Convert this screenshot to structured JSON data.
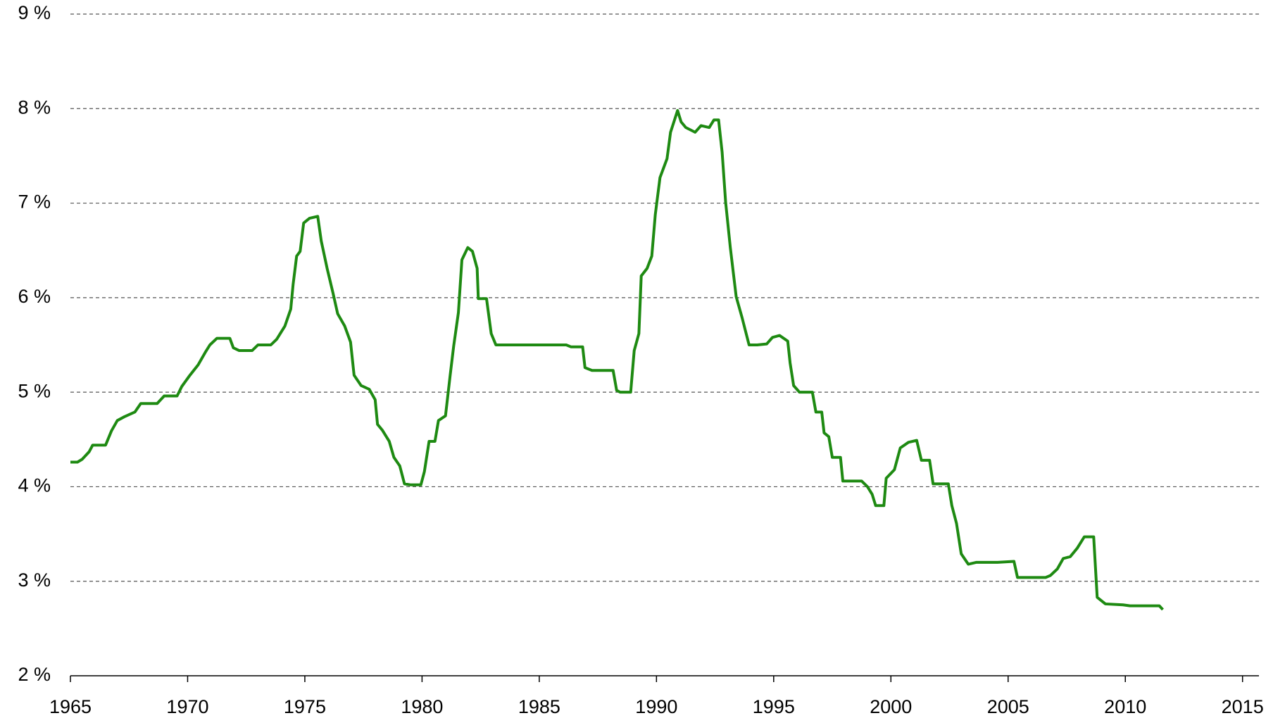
{
  "chart_data": {
    "type": "line",
    "x": [
      1965.0,
      1965.3,
      1965.5,
      1965.8,
      1965.95,
      1966.5,
      1966.75,
      1967.0,
      1967.3,
      1967.75,
      1968.0,
      1968.7,
      1969.0,
      1969.55,
      1969.75,
      1970.1,
      1970.45,
      1970.75,
      1970.95,
      1971.25,
      1971.8,
      1971.95,
      1972.2,
      1972.75,
      1973.0,
      1973.55,
      1973.8,
      1974.15,
      1974.4,
      1974.5,
      1974.65,
      1974.8,
      1974.95,
      1975.2,
      1975.55,
      1975.7,
      1975.95,
      1976.2,
      1976.4,
      1976.7,
      1976.95,
      1977.1,
      1977.4,
      1977.75,
      1978.0,
      1978.1,
      1978.3,
      1978.6,
      1978.8,
      1979.05,
      1979.25,
      1979.5,
      1979.95,
      1980.1,
      1980.3,
      1980.55,
      1980.7,
      1981.0,
      1981.2,
      1981.35,
      1981.55,
      1981.7,
      1981.95,
      1982.15,
      1982.35,
      1982.4,
      1982.75,
      1982.95,
      1983.15,
      1986.15,
      1986.35,
      1986.85,
      1986.95,
      1987.25,
      1988.15,
      1988.3,
      1988.45,
      1988.9,
      1989.05,
      1989.25,
      1989.35,
      1989.6,
      1989.8,
      1989.95,
      1990.15,
      1990.45,
      1990.6,
      1990.9,
      1991.05,
      1991.25,
      1991.65,
      1991.9,
      1992.25,
      1992.45,
      1992.65,
      1992.8,
      1992.95,
      1993.15,
      1993.4,
      1993.65,
      1993.95,
      1994.3,
      1994.7,
      1994.95,
      1995.25,
      1995.6,
      1995.7,
      1995.85,
      1996.1,
      1996.65,
      1996.8,
      1997.05,
      1997.15,
      1997.35,
      1997.5,
      1997.85,
      1997.95,
      1998.75,
      1999.0,
      1999.2,
      1999.35,
      1999.7,
      1999.8,
      2000.15,
      2000.4,
      2000.75,
      2001.1,
      2001.3,
      2001.65,
      2001.8,
      2002.45,
      2002.6,
      2002.8,
      2003.0,
      2003.3,
      2003.65,
      2004.55,
      2005.25,
      2005.4,
      2006.6,
      2006.8,
      2007.1,
      2007.35,
      2007.65,
      2007.95,
      2008.25,
      2008.65,
      2008.8,
      2009.15,
      2009.9,
      2010.2,
      2011.45,
      2011.6
    ],
    "values": [
      4.26,
      4.26,
      4.29,
      4.37,
      4.44,
      4.44,
      4.59,
      4.7,
      4.74,
      4.79,
      4.88,
      4.88,
      4.96,
      4.96,
      5.06,
      5.18,
      5.29,
      5.42,
      5.5,
      5.57,
      5.57,
      5.47,
      5.44,
      5.44,
      5.5,
      5.5,
      5.56,
      5.7,
      5.88,
      6.14,
      6.44,
      6.49,
      6.79,
      6.84,
      6.86,
      6.6,
      6.31,
      6.05,
      5.83,
      5.7,
      5.53,
      5.18,
      5.07,
      5.03,
      4.92,
      4.66,
      4.6,
      4.48,
      4.31,
      4.22,
      4.03,
      4.02,
      4.02,
      4.16,
      4.48,
      4.48,
      4.7,
      4.75,
      5.18,
      5.49,
      5.84,
      6.4,
      6.53,
      6.49,
      6.31,
      5.99,
      5.99,
      5.62,
      5.5,
      5.5,
      5.48,
      5.48,
      5.26,
      5.23,
      5.23,
      5.02,
      5.0,
      5.0,
      5.44,
      5.62,
      6.23,
      6.31,
      6.44,
      6.88,
      7.27,
      7.47,
      7.75,
      7.98,
      7.86,
      7.8,
      7.75,
      7.82,
      7.8,
      7.88,
      7.88,
      7.54,
      7.01,
      6.53,
      6.01,
      5.79,
      5.5,
      5.5,
      5.51,
      5.58,
      5.6,
      5.54,
      5.31,
      5.07,
      5.0,
      5.0,
      4.79,
      4.79,
      4.57,
      4.53,
      4.31,
      4.31,
      4.06,
      4.06,
      4.0,
      3.92,
      3.8,
      3.8,
      4.09,
      4.18,
      4.41,
      4.47,
      4.49,
      4.28,
      4.28,
      4.03,
      4.03,
      3.8,
      3.61,
      3.29,
      3.18,
      3.2,
      3.2,
      3.21,
      3.04,
      3.04,
      3.06,
      3.13,
      3.24,
      3.26,
      3.35,
      3.47,
      3.47,
      2.83,
      2.76,
      2.75,
      2.74,
      2.74,
      2.7
    ],
    "color": "#1e8a12",
    "xlim": [
      1965,
      2015.7
    ],
    "xticks": [
      1965,
      1970,
      1975,
      1980,
      1985,
      1990,
      1995,
      2000,
      2005,
      2010,
      2015
    ],
    "ylim": [
      2,
      9
    ],
    "yticks": [
      {
        "value": 2,
        "label": "2 %"
      },
      {
        "value": 3,
        "label": "3 %"
      },
      {
        "value": 4,
        "label": "4 %"
      },
      {
        "value": 5,
        "label": "5 %"
      },
      {
        "value": 6,
        "label": "6 %"
      },
      {
        "value": 7,
        "label": "7 %"
      },
      {
        "value": 8,
        "label": "8 %"
      },
      {
        "value": 9,
        "label": "9 %"
      }
    ],
    "grid": true
  }
}
